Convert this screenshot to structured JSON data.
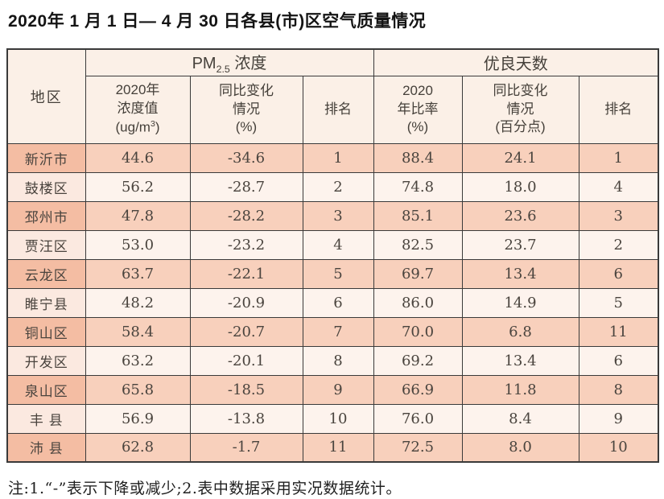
{
  "title": "2020年 1 月 1 日— 4 月 30 日各县(市)区空气质量情况",
  "note": "注:1.“-”表示下降或减少;2.表中数据采用实况数据统计。",
  "colors": {
    "header_bg": "#fbf0e7",
    "row_odd_bg": "#f8d0bc",
    "row_odd_region_bg": "#f4bda3",
    "row_even_bg": "#fdf3ed",
    "row_even_region_bg": "#fbe9e0",
    "border": "#3a3a3a",
    "text": "#454039"
  },
  "table": {
    "headers": {
      "region": "地区",
      "pm_group": {
        "base": "PM",
        "sub": "2.5",
        "suffix": " 浓度"
      },
      "good_group": "优良天数",
      "pm_value": {
        "l1": "2020年",
        "l2": "浓度值",
        "l3_pre": "(ug/m",
        "l3_sup": "3",
        "l3_post": ")"
      },
      "pm_change": {
        "l1": "同比变化",
        "l2": "情况",
        "l3": "(%)"
      },
      "pm_rank": "排名",
      "good_ratio": {
        "l1": "2020",
        "l2": "年比率",
        "l3": "(%)"
      },
      "good_change": {
        "l1": "同比变化",
        "l2": "情况",
        "l3": "(百分点)"
      },
      "good_rank": "排名"
    },
    "rows": [
      {
        "region": "新沂市",
        "pm_value": "44.6",
        "pm_change": "-34.6",
        "pm_rank": "1",
        "good_ratio": "88.4",
        "good_change": "24.1",
        "good_rank": "1"
      },
      {
        "region": "鼓楼区",
        "pm_value": "56.2",
        "pm_change": "-28.7",
        "pm_rank": "2",
        "good_ratio": "74.8",
        "good_change": "18.0",
        "good_rank": "4"
      },
      {
        "region": "邳州市",
        "pm_value": "47.8",
        "pm_change": "-28.2",
        "pm_rank": "3",
        "good_ratio": "85.1",
        "good_change": "23.6",
        "good_rank": "3"
      },
      {
        "region": "贾汪区",
        "pm_value": "53.0",
        "pm_change": "-23.2",
        "pm_rank": "4",
        "good_ratio": "82.5",
        "good_change": "23.7",
        "good_rank": "2"
      },
      {
        "region": "云龙区",
        "pm_value": "63.7",
        "pm_change": "-22.1",
        "pm_rank": "5",
        "good_ratio": "69.7",
        "good_change": "13.4",
        "good_rank": "6"
      },
      {
        "region": "睢宁县",
        "pm_value": "48.2",
        "pm_change": "-20.9",
        "pm_rank": "6",
        "good_ratio": "86.0",
        "good_change": "14.9",
        "good_rank": "5"
      },
      {
        "region": "铜山区",
        "pm_value": "58.4",
        "pm_change": "-20.7",
        "pm_rank": "7",
        "good_ratio": "70.0",
        "good_change": "6.8",
        "good_rank": "11"
      },
      {
        "region": "开发区",
        "pm_value": "63.2",
        "pm_change": "-20.1",
        "pm_rank": "8",
        "good_ratio": "69.2",
        "good_change": "13.4",
        "good_rank": "6"
      },
      {
        "region": "泉山区",
        "pm_value": "65.8",
        "pm_change": "-18.5",
        "pm_rank": "9",
        "good_ratio": "66.9",
        "good_change": "11.8",
        "good_rank": "8"
      },
      {
        "region": "丰 县",
        "pm_value": "56.9",
        "pm_change": "-13.8",
        "pm_rank": "10",
        "good_ratio": "76.0",
        "good_change": "8.4",
        "good_rank": "9"
      },
      {
        "region": "沛 县",
        "pm_value": "62.8",
        "pm_change": "-1.7",
        "pm_rank": "11",
        "good_ratio": "72.5",
        "good_change": "8.0",
        "good_rank": "10"
      }
    ]
  }
}
